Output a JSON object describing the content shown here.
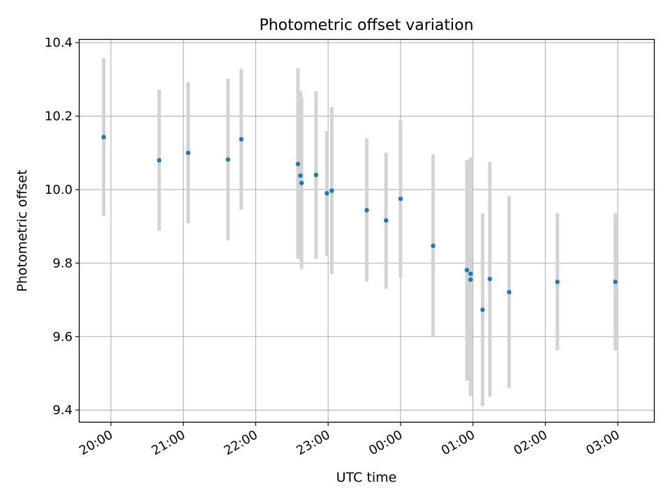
{
  "chart_data": {
    "type": "scatter",
    "title": "Photometric offset variation",
    "xlabel": "UTC time",
    "ylabel": "Photometric offset",
    "xlim": [
      "19:34",
      "03:30"
    ],
    "ylim": [
      9.368,
      10.408
    ],
    "x_ticks": [
      "20:00",
      "21:00",
      "22:00",
      "23:00",
      "00:00",
      "01:00",
      "02:00",
      "03:00"
    ],
    "y_ticks": [
      "9.4",
      "9.6",
      "9.8",
      "10.0",
      "10.2",
      "10.4"
    ],
    "grid": true,
    "colors": {
      "point": "#1f77b4",
      "errorbar": "#d3d3d3",
      "grid": "#b0b0b0"
    },
    "points": [
      {
        "x": "19:54",
        "y": 10.143,
        "ylo": 9.928,
        "yhi": 10.358
      },
      {
        "x": "20:40",
        "y": 10.08,
        "ylo": 9.888,
        "yhi": 10.272
      },
      {
        "x": "21:04",
        "y": 10.1,
        "ylo": 9.908,
        "yhi": 10.292
      },
      {
        "x": "21:37",
        "y": 10.082,
        "ylo": 9.862,
        "yhi": 10.302
      },
      {
        "x": "21:48",
        "y": 10.137,
        "ylo": 9.946,
        "yhi": 10.328
      },
      {
        "x": "22:35",
        "y": 10.07,
        "ylo": 9.812,
        "yhi": 10.33
      },
      {
        "x": "22:37",
        "y": 10.038,
        "ylo": 9.81,
        "yhi": 10.268
      },
      {
        "x": "22:38",
        "y": 10.018,
        "ylo": 9.784,
        "yhi": 10.252
      },
      {
        "x": "22:50",
        "y": 10.04,
        "ylo": 9.812,
        "yhi": 10.268
      },
      {
        "x": "22:59",
        "y": 9.99,
        "ylo": 9.82,
        "yhi": 10.16
      },
      {
        "x": "23:03",
        "y": 9.997,
        "ylo": 9.77,
        "yhi": 10.224
      },
      {
        "x": "23:32",
        "y": 9.944,
        "ylo": 9.75,
        "yhi": 10.14
      },
      {
        "x": "23:48",
        "y": 9.916,
        "ylo": 9.73,
        "yhi": 10.1
      },
      {
        "x": "00:00",
        "y": 9.975,
        "ylo": 9.76,
        "yhi": 10.19
      },
      {
        "x": "00:27",
        "y": 9.847,
        "ylo": 9.598,
        "yhi": 10.096
      },
      {
        "x": "00:55",
        "y": 9.781,
        "ylo": 9.48,
        "yhi": 10.08
      },
      {
        "x": "00:58",
        "y": 9.771,
        "ylo": 9.455,
        "yhi": 10.088
      },
      {
        "x": "00:58",
        "y": 9.755,
        "ylo": 9.438,
        "yhi": 10.072
      },
      {
        "x": "01:08",
        "y": 9.673,
        "ylo": 9.412,
        "yhi": 9.935
      },
      {
        "x": "01:14",
        "y": 9.757,
        "ylo": 9.436,
        "yhi": 10.076
      },
      {
        "x": "01:30",
        "y": 9.721,
        "ylo": 9.46,
        "yhi": 9.982
      },
      {
        "x": "02:10",
        "y": 9.749,
        "ylo": 9.562,
        "yhi": 9.936
      },
      {
        "x": "02:58",
        "y": 9.749,
        "ylo": 9.562,
        "yhi": 9.936
      }
    ]
  }
}
